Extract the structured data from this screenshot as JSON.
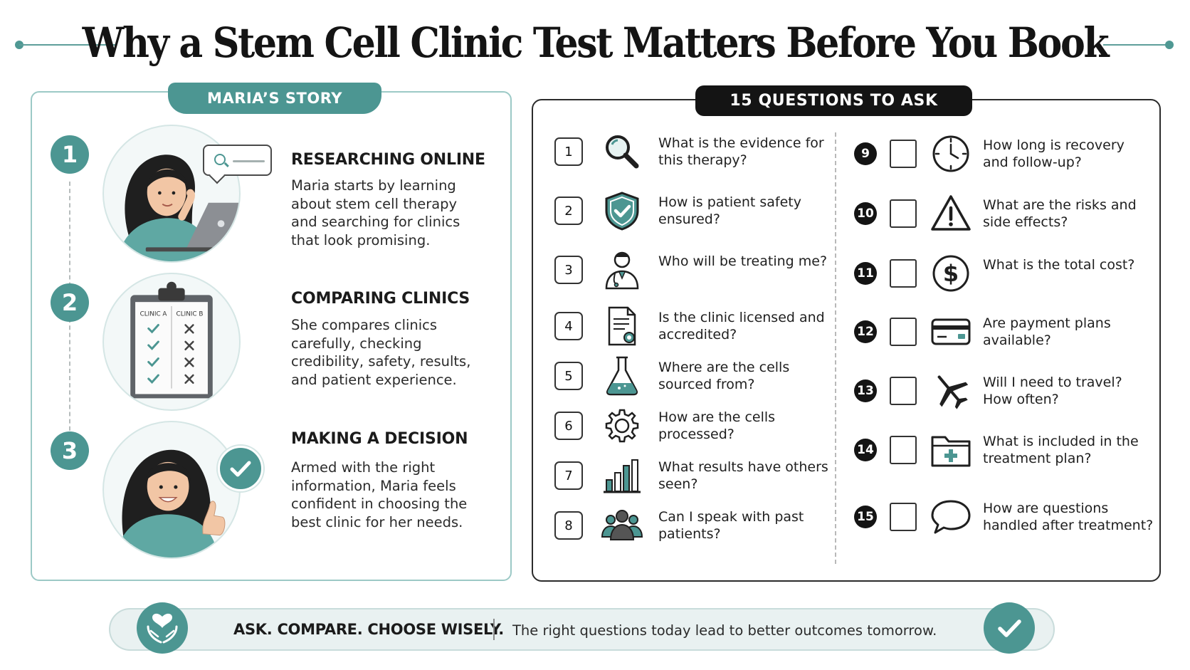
{
  "title": "Why a Stem Cell Clinic Test Matters Before You Book",
  "colors": {
    "accent": "#4c9692",
    "dark": "#141414",
    "panel_border": "#9cc9c6"
  },
  "story": {
    "tab_label": "MARIA’S STORY",
    "steps": [
      {
        "number": "1",
        "title": "RESEARCHING ONLINE",
        "body": "Maria starts by learning about stem cell therapy and searching for clinics that look promising.",
        "icon": "woman-laptop-illustration"
      },
      {
        "number": "2",
        "title": "COMPARING CLINICS",
        "body": "She compares clinics carefully, checking credibility, safety, results, and patient experience.",
        "icon": "clipboard-comparison-illustration",
        "clipboard": {
          "col_a": "CLINIC A",
          "col_b": "CLINIC B"
        }
      },
      {
        "number": "3",
        "title": "MAKING A DECISION",
        "body": "Armed with the right information, Maria feels confident in choosing the best clinic for her needs.",
        "icon": "woman-thumbs-up-illustration"
      }
    ]
  },
  "questions": {
    "tab_label": "15 QUESTIONS TO ASK",
    "items": [
      {
        "number": "1",
        "icon": "magnifier-icon",
        "text": "What is the evidence for this therapy?"
      },
      {
        "number": "2",
        "icon": "shield-check-icon",
        "text": "How is patient safety ensured?"
      },
      {
        "number": "3",
        "icon": "doctor-icon",
        "text": "Who will be treating me?"
      },
      {
        "number": "4",
        "icon": "certificate-icon",
        "text": "Is the clinic licensed and accredited?"
      },
      {
        "number": "5",
        "icon": "flask-icon",
        "text": "Where are the cells sourced from?"
      },
      {
        "number": "6",
        "icon": "gear-icon",
        "text": "How are the cells processed?"
      },
      {
        "number": "7",
        "icon": "bar-chart-icon",
        "text": "What results have others seen?"
      },
      {
        "number": "8",
        "icon": "group-icon",
        "text": "Can I speak with past patients?"
      },
      {
        "number": "9",
        "icon": "clock-icon",
        "text": "How long is recovery and follow-up?"
      },
      {
        "number": "10",
        "icon": "warning-icon",
        "text": "What are the risks and side effects?"
      },
      {
        "number": "11",
        "icon": "dollar-icon",
        "text": "What is the total cost?"
      },
      {
        "number": "12",
        "icon": "credit-card-icon",
        "text": "Are payment plans available?"
      },
      {
        "number": "13",
        "icon": "airplane-icon",
        "text": "Will I need to travel? How often?"
      },
      {
        "number": "14",
        "icon": "medical-folder-icon",
        "text": "What is included in the treatment plan?"
      },
      {
        "number": "15",
        "icon": "chat-bubble-icon",
        "text": "How are questions handled after treatment?"
      }
    ]
  },
  "footer": {
    "tagline": "ASK. COMPARE. CHOOSE WISELY.",
    "message": "The right questions today lead to better outcomes tomorrow.",
    "left_icon": "heart-hands-icon",
    "right_icon": "check-icon"
  }
}
